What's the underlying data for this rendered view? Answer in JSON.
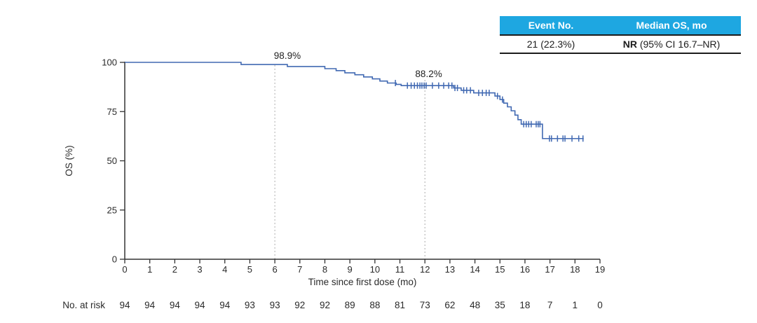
{
  "summary_table": {
    "header_bg": "#1EA7E1",
    "columns": [
      {
        "label": "Event No."
      },
      {
        "label": "Median OS, mo"
      }
    ],
    "row": {
      "event_no": "21 (22.3%)",
      "median_os_bold": "NR",
      "median_os_rest": " (95% CI 16.7–NR)"
    }
  },
  "chart_data": {
    "type": "line",
    "subtype": "kaplan-meier-step",
    "title": "",
    "xlabel": "Time since first dose (mo)",
    "ylabel": "OS (%)",
    "xlim": [
      0,
      19
    ],
    "ylim": [
      0,
      100
    ],
    "x_ticks": [
      0,
      1,
      2,
      3,
      4,
      5,
      6,
      7,
      8,
      9,
      10,
      11,
      12,
      13,
      14,
      15,
      16,
      17,
      18,
      19
    ],
    "y_ticks": [
      0,
      25,
      50,
      75,
      100
    ],
    "grid": false,
    "legend": "none",
    "colors": {
      "curve": "#4169B2",
      "axis": "#333333",
      "dashed": "#ABABAB"
    },
    "series": [
      {
        "name": "OS",
        "steps": [
          [
            0,
            100
          ],
          [
            4.65,
            98.9
          ],
          [
            6.5,
            97.9
          ],
          [
            8.0,
            96.8
          ],
          [
            8.45,
            95.8
          ],
          [
            8.8,
            94.7
          ],
          [
            9.2,
            93.7
          ],
          [
            9.55,
            92.6
          ],
          [
            9.9,
            91.6
          ],
          [
            10.2,
            90.5
          ],
          [
            10.5,
            89.5
          ],
          [
            10.85,
            88.8
          ],
          [
            11.05,
            88.2
          ],
          [
            13.15,
            87.0
          ],
          [
            13.45,
            85.8
          ],
          [
            13.95,
            84.5
          ],
          [
            14.8,
            82.9
          ],
          [
            15.0,
            81.1
          ],
          [
            15.15,
            79.3
          ],
          [
            15.3,
            77.4
          ],
          [
            15.45,
            75.4
          ],
          [
            15.6,
            73.2
          ],
          [
            15.72,
            70.9
          ],
          [
            15.85,
            68.6
          ],
          [
            16.7,
            61.3
          ],
          [
            18.35,
            61.3
          ]
        ],
        "censor_marks": [
          [
            10.82,
            89.5
          ],
          [
            11.3,
            88.2
          ],
          [
            11.45,
            88.2
          ],
          [
            11.58,
            88.2
          ],
          [
            11.7,
            88.2
          ],
          [
            11.8,
            88.2
          ],
          [
            11.88,
            88.2
          ],
          [
            11.97,
            88.2
          ],
          [
            12.05,
            88.2
          ],
          [
            12.3,
            88.2
          ],
          [
            12.55,
            88.2
          ],
          [
            12.75,
            88.2
          ],
          [
            12.95,
            88.2
          ],
          [
            13.08,
            88.2
          ],
          [
            13.2,
            87.0
          ],
          [
            13.3,
            87.0
          ],
          [
            13.55,
            85.8
          ],
          [
            13.67,
            85.8
          ],
          [
            13.82,
            85.8
          ],
          [
            14.15,
            84.5
          ],
          [
            14.3,
            84.5
          ],
          [
            14.45,
            84.5
          ],
          [
            14.57,
            84.5
          ],
          [
            14.9,
            82.9
          ],
          [
            15.1,
            81.1
          ],
          [
            15.95,
            68.6
          ],
          [
            16.05,
            68.6
          ],
          [
            16.15,
            68.6
          ],
          [
            16.25,
            68.6
          ],
          [
            16.45,
            68.6
          ],
          [
            16.53,
            68.6
          ],
          [
            16.6,
            68.6
          ],
          [
            16.98,
            61.3
          ],
          [
            17.06,
            61.3
          ],
          [
            17.3,
            61.3
          ],
          [
            17.52,
            61.3
          ],
          [
            17.6,
            61.3
          ],
          [
            17.88,
            61.3
          ],
          [
            18.15,
            61.3
          ],
          [
            18.32,
            61.3
          ]
        ]
      }
    ],
    "annotations": [
      {
        "text": "98.9%",
        "x_mo": 6.5,
        "y_pct": 101.8
      },
      {
        "text": "88.2%",
        "x_mo": 12.15,
        "y_pct": 92.5
      }
    ],
    "reference_lines": [
      {
        "x": 6,
        "top_pct": 98.6
      },
      {
        "x": 12,
        "top_pct": 91.1
      }
    ],
    "at_risk": {
      "label": "No. at risk",
      "values": [
        94,
        94,
        94,
        94,
        94,
        93,
        93,
        92,
        92,
        89,
        88,
        81,
        73,
        62,
        48,
        35,
        18,
        7,
        1,
        0
      ]
    }
  }
}
